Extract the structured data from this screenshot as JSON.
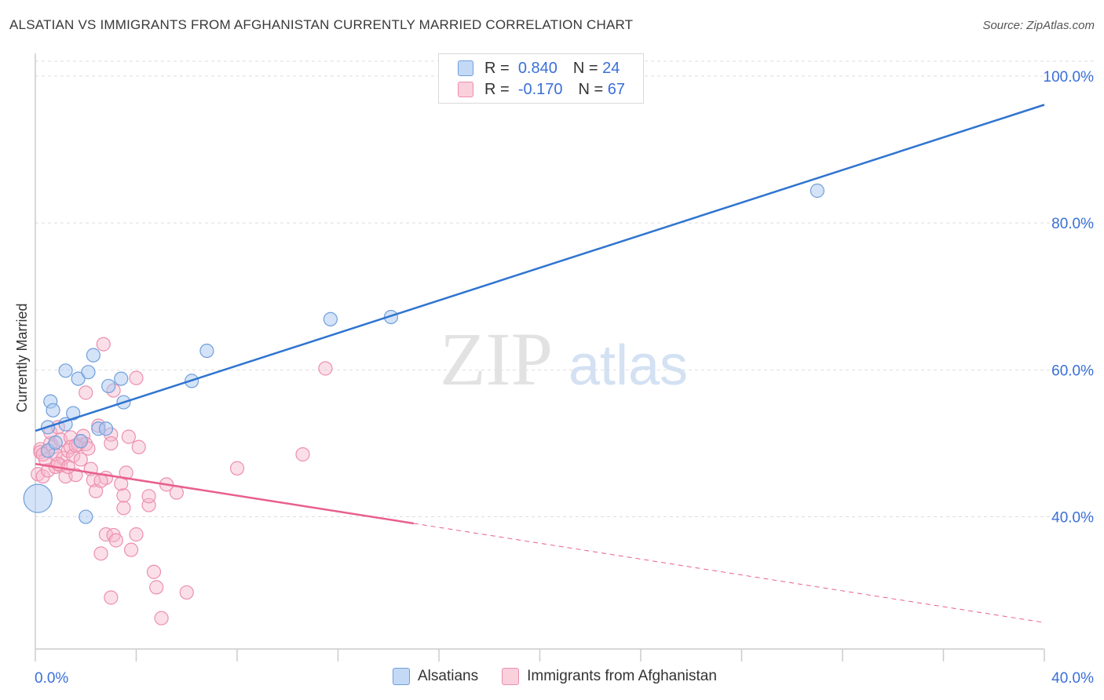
{
  "header": {
    "title": "ALSATIAN VS IMMIGRANTS FROM AFGHANISTAN CURRENTLY MARRIED CORRELATION CHART",
    "source": "Source: ZipAtlas.com"
  },
  "legend_top": {
    "row1": {
      "r_label": "R =",
      "r_value": "0.840",
      "n_label": "N =",
      "n_value": "24"
    },
    "row2": {
      "r_label": "R =",
      "r_value": "-0.170",
      "n_label": "N =",
      "n_value": "67"
    }
  },
  "legend_bottom": {
    "series1": "Alsatians",
    "series2": "Immigrants from Afghanistan"
  },
  "watermark": {
    "zip": "ZIP",
    "atlas": "atlas"
  },
  "colors": {
    "blue_fill": "#a9c8f0",
    "blue_stroke": "#6f9fdc",
    "blue_line": "#2f74d0",
    "pink_fill": "#f7b8cc",
    "pink_stroke": "#ec8fae",
    "pink_line": "#e8608c",
    "axis_label": "#3a6fd8"
  },
  "chart_data": {
    "type": "scatter",
    "title": "ALSATIAN VS IMMIGRANTS FROM AFGHANISTAN CURRENTLY MARRIED CORRELATION CHART",
    "xlabel": "",
    "ylabel": "Currently Married",
    "xlim": [
      0,
      40
    ],
    "ylim": [
      22,
      103
    ],
    "x_tick_labels": [
      "0.0%",
      "40.0%"
    ],
    "y_ticks": [
      40,
      60,
      80,
      100
    ],
    "y_tick_labels": [
      "40.0%",
      "60.0%",
      "80.0%",
      "100.0%"
    ],
    "grid": true,
    "legend_position": "top-center",
    "series": [
      {
        "name": "Alsatians",
        "color": "#6f9fdc",
        "points": [
          [
            0.1,
            42.5
          ],
          [
            0.5,
            49.0
          ],
          [
            0.5,
            52.2
          ],
          [
            0.6,
            55.7
          ],
          [
            0.7,
            54.5
          ],
          [
            0.8,
            50.1
          ],
          [
            1.2,
            59.9
          ],
          [
            1.2,
            52.6
          ],
          [
            1.5,
            54.1
          ],
          [
            1.7,
            58.8
          ],
          [
            1.8,
            50.3
          ],
          [
            2.0,
            40.0
          ],
          [
            2.1,
            59.7
          ],
          [
            2.3,
            62.0
          ],
          [
            2.5,
            52.0
          ],
          [
            2.8,
            52.0
          ],
          [
            2.9,
            57.8
          ],
          [
            3.4,
            58.8
          ],
          [
            3.5,
            55.6
          ],
          [
            6.2,
            58.5
          ],
          [
            6.8,
            62.6
          ],
          [
            11.7,
            66.9
          ],
          [
            14.1,
            67.2
          ],
          [
            31.0,
            84.4
          ]
        ],
        "trend": {
          "x": [
            0,
            40
          ],
          "y": [
            51.7,
            96.1
          ]
        }
      },
      {
        "name": "Immigrants from Afghanistan",
        "color": "#ec8fae",
        "points": [
          [
            0.1,
            45.8
          ],
          [
            0.2,
            49.2
          ],
          [
            0.2,
            48.8
          ],
          [
            0.3,
            45.5
          ],
          [
            0.4,
            47.8
          ],
          [
            0.5,
            46.3
          ],
          [
            0.6,
            50.0
          ],
          [
            0.6,
            51.5
          ],
          [
            0.7,
            49.5
          ],
          [
            0.8,
            48.5
          ],
          [
            0.8,
            46.8
          ],
          [
            0.9,
            52.2
          ],
          [
            1.0,
            50.5
          ],
          [
            1.0,
            47.0
          ],
          [
            1.1,
            48.0
          ],
          [
            1.2,
            45.5
          ],
          [
            1.3,
            49.0
          ],
          [
            1.4,
            50.8
          ],
          [
            1.4,
            49.5
          ],
          [
            1.5,
            48.3
          ],
          [
            1.6,
            45.7
          ],
          [
            1.7,
            49.8
          ],
          [
            1.8,
            47.8
          ],
          [
            1.8,
            50.3
          ],
          [
            1.9,
            51.0
          ],
          [
            2.0,
            56.9
          ],
          [
            2.0,
            49.9
          ],
          [
            2.1,
            49.3
          ],
          [
            2.2,
            46.5
          ],
          [
            2.3,
            45.0
          ],
          [
            2.4,
            43.5
          ],
          [
            2.5,
            52.4
          ],
          [
            2.6,
            35.0
          ],
          [
            2.7,
            63.5
          ],
          [
            2.8,
            37.6
          ],
          [
            2.8,
            45.3
          ],
          [
            3.0,
            51.2
          ],
          [
            3.1,
            57.2
          ],
          [
            3.1,
            37.5
          ],
          [
            3.2,
            36.8
          ],
          [
            3.4,
            44.5
          ],
          [
            3.5,
            42.9
          ],
          [
            3.5,
            41.2
          ],
          [
            3.6,
            46.0
          ],
          [
            3.7,
            50.9
          ],
          [
            3.8,
            35.5
          ],
          [
            4.0,
            58.9
          ],
          [
            4.0,
            37.6
          ],
          [
            4.1,
            49.5
          ],
          [
            4.5,
            41.6
          ],
          [
            4.5,
            42.8
          ],
          [
            4.7,
            32.5
          ],
          [
            4.8,
            30.4
          ],
          [
            5.0,
            26.2
          ],
          [
            5.2,
            44.4
          ],
          [
            5.6,
            43.3
          ],
          [
            6.0,
            29.7
          ],
          [
            3.0,
            29.0
          ],
          [
            8.0,
            46.6
          ],
          [
            10.6,
            48.5
          ],
          [
            11.5,
            60.2
          ],
          [
            0.3,
            48.5
          ],
          [
            0.9,
            47.2
          ],
          [
            2.6,
            44.9
          ],
          [
            1.3,
            46.8
          ],
          [
            1.6,
            49.7
          ],
          [
            3.0,
            50.0
          ]
        ],
        "trend": {
          "x": [
            0,
            15
          ],
          "y": [
            47.2,
            39.1
          ]
        },
        "trend_extension": {
          "x": [
            15,
            40
          ],
          "y": [
            39.1,
            25.6
          ]
        }
      }
    ]
  }
}
